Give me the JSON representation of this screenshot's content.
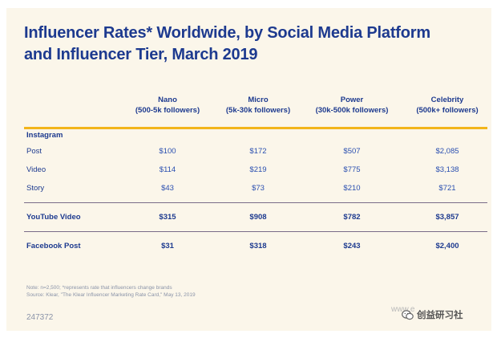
{
  "chart_data": {
    "type": "table",
    "title_lines": [
      "Influencer Rates* Worldwide, by Social Media Platform",
      "and Influencer Tier, March 2019"
    ],
    "columns": [
      {
        "name": "Nano",
        "range": "(500-5k followers)"
      },
      {
        "name": "Micro",
        "range": "(5k-30k followers)"
      },
      {
        "name": "Power",
        "range": "(30k-500k followers)"
      },
      {
        "name": "Celebrity",
        "range": "(500k+ followers)"
      }
    ],
    "sections": [
      {
        "name": "Instagram",
        "rows": [
          {
            "label": "Post",
            "values": [
              "$100",
              "$172",
              "$507",
              "$2,085"
            ]
          },
          {
            "label": "Video",
            "values": [
              "$114",
              "$219",
              "$775",
              "$3,138"
            ]
          },
          {
            "label": "Story",
            "values": [
              "$43",
              "$73",
              "$210",
              "$721"
            ]
          }
        ]
      },
      {
        "name": "",
        "rows": [
          {
            "label": "YouTube Video",
            "values": [
              "$315",
              "$908",
              "$782",
              "$3,857"
            ]
          }
        ]
      },
      {
        "name": "",
        "rows": [
          {
            "label": "Facebook Post",
            "values": [
              "$31",
              "$318",
              "$243",
              "$2,400"
            ]
          }
        ]
      }
    ],
    "notes": [
      "Note: n=2,500; *represents rate that influencers change brands",
      "Source: Klear, \"The Klear Influencer Marketing Rate Card,\" May 13, 2019"
    ],
    "chart_id": "247372"
  },
  "watermark": {
    "faded_text": "www.e",
    "channel": "创益研习社"
  },
  "colors": {
    "title": "#1d3a8f",
    "values": "#2a4fb0",
    "accent_rule": "#f2b51a",
    "background": "#fbf6ea"
  }
}
